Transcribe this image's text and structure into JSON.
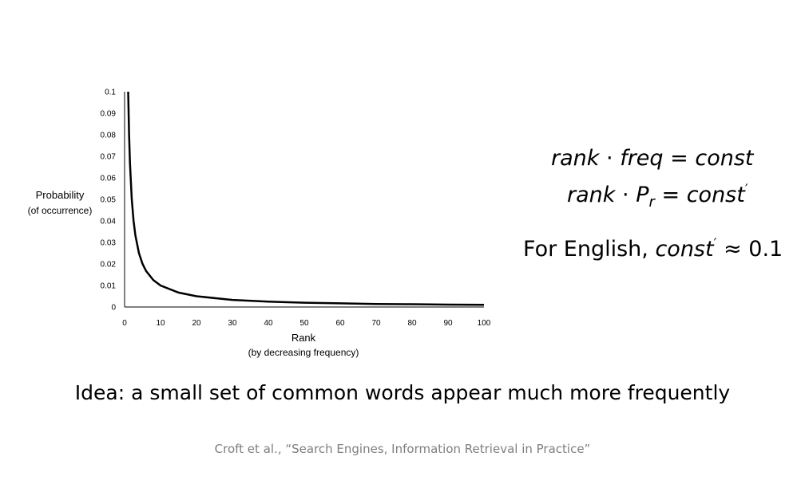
{
  "chart_data": {
    "type": "line",
    "title": "",
    "ylabel": "Probability",
    "ylabel_sub": "(of occurrence)",
    "xlabel": "Rank",
    "xlabel_sub": "(by decreasing frequency)",
    "xlim": [
      0,
      100
    ],
    "ylim": [
      0,
      0.1
    ],
    "x_ticks": [
      "0",
      "10",
      "20",
      "30",
      "40",
      "50",
      "60",
      "70",
      "80",
      "90",
      "100"
    ],
    "y_ticks": [
      "0",
      "0.01",
      "0.02",
      "0.03",
      "0.04",
      "0.05",
      "0.06",
      "0.07",
      "0.08",
      "0.09",
      "0.1"
    ],
    "grid": false,
    "legend": "none",
    "series": [
      {
        "curve": "P = 0.1 / rank",
        "x": [
          1,
          1.25,
          1.5,
          2,
          2.5,
          3,
          4,
          5,
          6,
          8,
          10,
          15,
          20,
          30,
          40,
          50,
          60,
          70,
          80,
          90,
          100
        ],
        "y": [
          0.1,
          0.08,
          0.0667,
          0.05,
          0.04,
          0.0333,
          0.025,
          0.02,
          0.0167,
          0.0125,
          0.01,
          0.0067,
          0.005,
          0.0033,
          0.0025,
          0.002,
          0.0017,
          0.0014,
          0.0013,
          0.0011,
          0.001
        ]
      }
    ],
    "color": "#000000"
  },
  "equations": {
    "line1": {
      "left": "rank",
      "dot": "·",
      "mid": "freq",
      "eq": "=",
      "right": "const"
    },
    "line2": {
      "left": "rank",
      "dot": "·",
      "var": "P",
      "sub": "r",
      "eq": "=",
      "right": "const",
      "prime": "′"
    },
    "note": {
      "prefix": "For English,",
      "var": "const",
      "prime": "′",
      "approx": "≈",
      "value": "0.1"
    }
  },
  "idea": "Idea: a small set of common words appear much more frequently",
  "citation": "Croft et al., “Search Engines, Information Retrieval in Practice”"
}
